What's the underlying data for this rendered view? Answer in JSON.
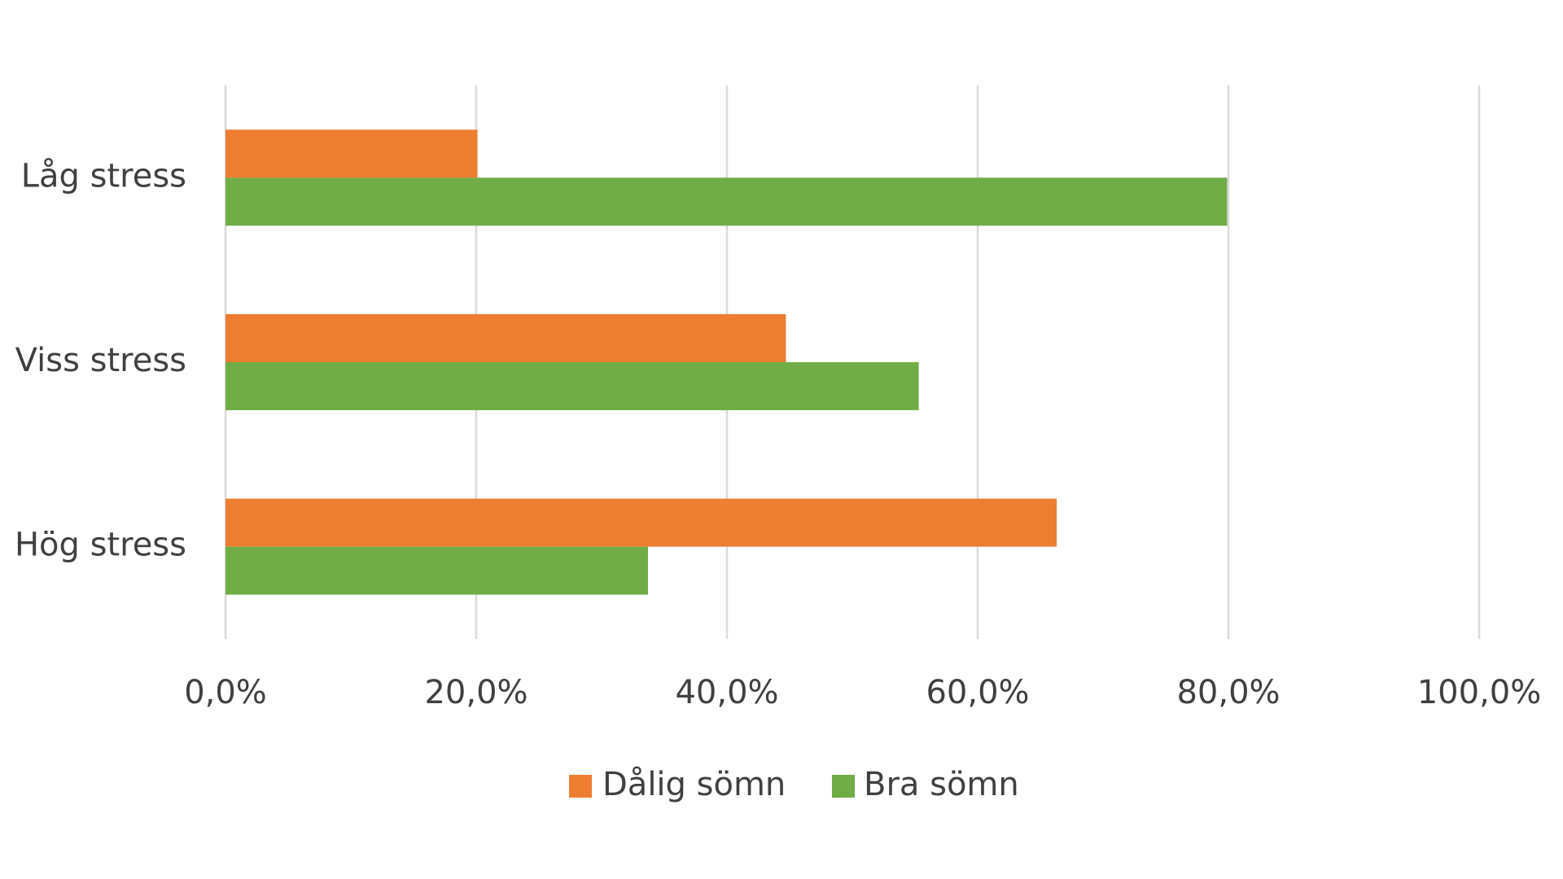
{
  "chart_data": {
    "type": "bar",
    "orientation": "horizontal",
    "categories": [
      "Låg stress",
      "Viss stress",
      "Hög stress"
    ],
    "series": [
      {
        "name": "Dålig sömn",
        "color": "#ed7d31",
        "values": [
          20.1,
          44.7,
          66.3
        ]
      },
      {
        "name": "Bra sömn",
        "color": "#70ad47",
        "values": [
          79.9,
          55.3,
          33.7
        ]
      }
    ],
    "xlim": [
      0,
      100
    ],
    "xticks": [
      {
        "value": 0,
        "label": "0,0%"
      },
      {
        "value": 20,
        "label": "20,0%"
      },
      {
        "value": 40,
        "label": "40,0%"
      },
      {
        "value": 60,
        "label": "60,0%"
      },
      {
        "value": 80,
        "label": "80,0%"
      },
      {
        "value": 100,
        "label": "100,0%"
      }
    ],
    "grid": true,
    "legend": "bottom"
  }
}
